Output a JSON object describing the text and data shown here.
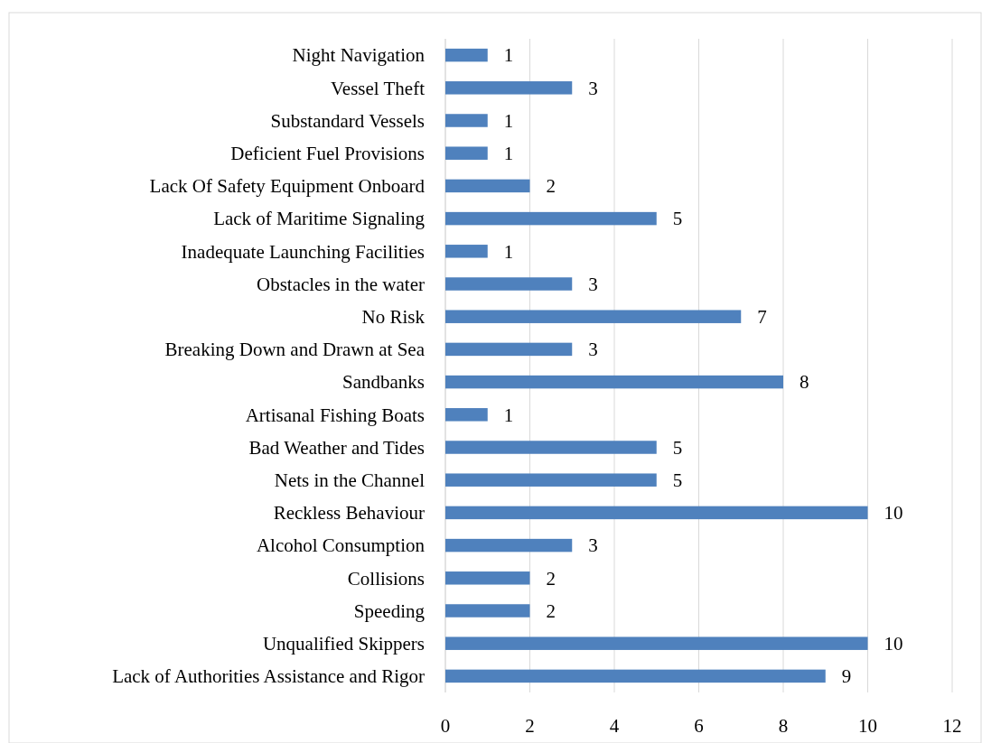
{
  "chart_data": {
    "type": "bar",
    "orientation": "horizontal",
    "categories": [
      "Night Navigation",
      "Vessel Theft",
      "Substandard Vessels",
      "Deficient Fuel Provisions",
      "Lack Of Safety Equipment Onboard",
      "Lack of Maritime Signaling",
      "Inadequate Launching Facilities",
      "Obstacles in the water",
      "No Risk",
      "Breaking Down and Drawn at Sea",
      "Sandbanks",
      "Artisanal Fishing Boats",
      "Bad Weather and Tides",
      "Nets in the Channel",
      "Reckless Behaviour",
      "Alcohol Consumption",
      "Collisions",
      "Speeding",
      "Unqualified Skippers",
      "Lack of Authorities Assistance and Rigor"
    ],
    "values": [
      1,
      3,
      1,
      1,
      2,
      5,
      1,
      3,
      7,
      3,
      8,
      1,
      5,
      5,
      10,
      3,
      2,
      2,
      10,
      9
    ],
    "color": "#4f81bd",
    "xlim": [
      0,
      12
    ],
    "xticks": [
      0,
      2,
      4,
      6,
      8,
      10,
      12
    ],
    "grid": "x",
    "data_labels": true
  }
}
